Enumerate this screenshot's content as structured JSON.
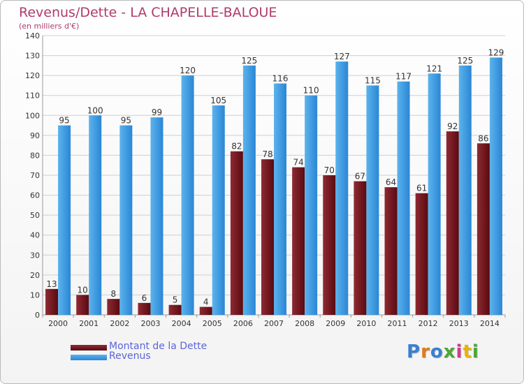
{
  "header": {
    "title": "Revenus/Dette - LA CHAPELLE-BALOUE",
    "subtitle": "(en milliers d'€)"
  },
  "legend": {
    "items": [
      {
        "label": "Montant de la Dette"
      },
      {
        "label": "Revenus"
      }
    ]
  },
  "logo": {
    "text": "Proxiti",
    "letter_colors": [
      "#3a7fd0",
      "#e07a1a",
      "#3a7fd0",
      "#4aa832",
      "#d23a8c",
      "#e8b400",
      "#4aa832"
    ]
  },
  "colors": {
    "dette": "#6b0f14",
    "dette_light": "#8e2a33",
    "revenus": "#2a86d6",
    "revenus_light": "#58aee9",
    "title": "#b03a6a",
    "legend_text": "#5b64d9",
    "grid": "#cfcfcf"
  },
  "chart_data": {
    "type": "bar",
    "title": "Revenus/Dette - LA CHAPELLE-BALOUE",
    "subtitle": "(en milliers d'€)",
    "categories": [
      "2000",
      "2001",
      "2002",
      "2003",
      "2004",
      "2005",
      "2006",
      "2007",
      "2008",
      "2009",
      "2010",
      "2011",
      "2012",
      "2013",
      "2014"
    ],
    "series": [
      {
        "name": "Montant de la Dette",
        "values": [
          13,
          10,
          8,
          6,
          5,
          4,
          82,
          78,
          74,
          70,
          67,
          64,
          61,
          92,
          86
        ]
      },
      {
        "name": "Revenus",
        "values": [
          95,
          100,
          95,
          99,
          120,
          105,
          125,
          116,
          110,
          127,
          115,
          117,
          121,
          125,
          129
        ]
      }
    ],
    "ylim": [
      0,
      140
    ],
    "yticks": [
      0,
      10,
      20,
      30,
      40,
      50,
      60,
      70,
      80,
      90,
      100,
      110,
      120,
      130,
      140
    ],
    "grid": true,
    "legend_position": "bottom-left"
  }
}
